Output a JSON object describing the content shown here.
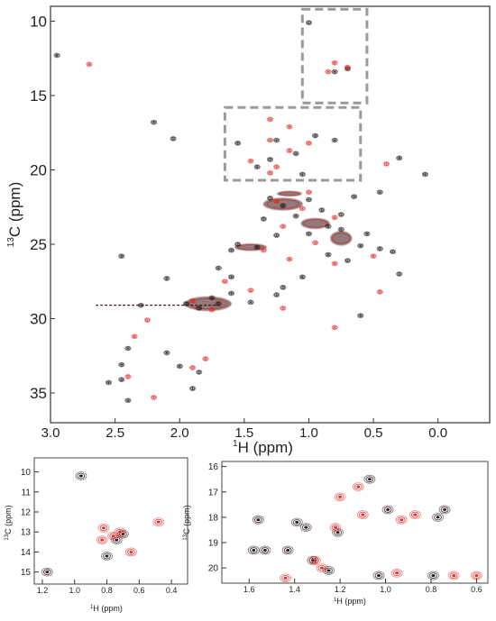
{
  "chart_data": [
    {
      "type": "scatter",
      "title": "",
      "xlabel_sup": "1",
      "xlabel": "H (ppm)",
      "ylabel_sup": "13",
      "ylabel": "C (ppm)",
      "xlim": [
        3.0,
        -0.4
      ],
      "ylim": [
        9,
        37
      ],
      "x_ticks": [
        "3.0",
        "2.5",
        "2.0",
        "1.5",
        "1.0",
        "0.5",
        "0.0"
      ],
      "y_ticks": [
        "10",
        "15",
        "20",
        "25",
        "30",
        "35"
      ],
      "x_tick_values": [
        3.0,
        2.5,
        2.0,
        1.5,
        1.0,
        0.5,
        0.0
      ],
      "y_tick_values": [
        10,
        15,
        20,
        25,
        30,
        35
      ],
      "highlight_boxes": [
        {
          "x": [
            0.55,
            1.05
          ],
          "y": [
            9.2,
            15.5
          ]
        },
        {
          "x": [
            0.6,
            1.65
          ],
          "y": [
            15.8,
            20.7
          ]
        }
      ],
      "series": [
        {
          "color": "#1a0a0a",
          "points": [
            [
              1.0,
              10.1
            ],
            [
              0.7,
              13.2
            ],
            [
              0.8,
              13.4
            ],
            [
              2.95,
              12.3
            ],
            [
              2.2,
              16.8
            ],
            [
              2.05,
              17.9
            ],
            [
              1.55,
              18.2
            ],
            [
              1.25,
              18.0
            ],
            [
              0.95,
              17.7
            ],
            [
              0.8,
              18.0
            ],
            [
              1.4,
              19.8
            ],
            [
              1.3,
              19.3
            ],
            [
              1.1,
              18.9
            ],
            [
              1.05,
              20.3
            ],
            [
              0.3,
              19.2
            ],
            [
              0.1,
              20.3
            ],
            [
              1.3,
              21.9
            ],
            [
              1.2,
              22.4
            ],
            [
              1.0,
              22.0
            ],
            [
              1.1,
              23.1
            ],
            [
              0.9,
              22.7
            ],
            [
              0.75,
              23.0
            ],
            [
              1.35,
              23.3
            ],
            [
              0.65,
              21.8
            ],
            [
              0.45,
              21.5
            ],
            [
              1.25,
              24.4
            ],
            [
              1.0,
              24.3
            ],
            [
              0.85,
              23.8
            ],
            [
              0.75,
              24.0
            ],
            [
              0.55,
              24.3
            ],
            [
              1.55,
              25.0
            ],
            [
              1.4,
              25.2
            ],
            [
              1.6,
              25.4
            ],
            [
              0.6,
              25.1
            ],
            [
              0.45,
              25.3
            ],
            [
              0.85,
              25.7
            ],
            [
              0.7,
              26.1
            ],
            [
              0.35,
              25.5
            ],
            [
              2.45,
              25.8
            ],
            [
              1.7,
              26.6
            ],
            [
              2.1,
              27.3
            ],
            [
              1.6,
              27.2
            ],
            [
              1.05,
              27.2
            ],
            [
              0.3,
              27.0
            ],
            [
              1.2,
              27.9
            ],
            [
              1.7,
              29.0
            ],
            [
              1.85,
              29.3
            ],
            [
              1.95,
              29.0
            ],
            [
              1.75,
              28.6
            ],
            [
              2.3,
              29.1
            ],
            [
              1.6,
              28.3
            ],
            [
              1.45,
              28.9
            ],
            [
              1.25,
              28.4
            ],
            [
              0.6,
              29.8
            ],
            [
              2.4,
              32.0
            ],
            [
              2.1,
              32.3
            ],
            [
              2.0,
              33.2
            ],
            [
              2.45,
              33.1
            ],
            [
              1.85,
              33.6
            ],
            [
              2.45,
              34.1
            ],
            [
              2.55,
              34.3
            ],
            [
              1.9,
              34.7
            ],
            [
              2.4,
              35.5
            ]
          ]
        },
        {
          "color": "#e0201e",
          "points": [
            [
              0.8,
              12.8
            ],
            [
              0.7,
              13.1
            ],
            [
              0.85,
              13.4
            ],
            [
              2.7,
              12.9
            ],
            [
              1.3,
              16.6
            ],
            [
              1.15,
              17.1
            ],
            [
              1.3,
              18.0
            ],
            [
              1.0,
              18.2
            ],
            [
              1.45,
              19.4
            ],
            [
              1.3,
              20.2
            ],
            [
              1.25,
              19.8
            ],
            [
              1.15,
              18.7
            ],
            [
              0.4,
              19.6
            ],
            [
              1.0,
              21.5
            ],
            [
              1.25,
              22.1
            ],
            [
              1.05,
              22.6
            ],
            [
              0.8,
              23.2
            ],
            [
              1.2,
              23.8
            ],
            [
              0.95,
              24.9
            ],
            [
              1.35,
              25.4
            ],
            [
              0.5,
              25.8
            ],
            [
              1.15,
              26.0
            ],
            [
              0.8,
              26.3
            ],
            [
              1.65,
              27.5
            ],
            [
              1.45,
              28.1
            ],
            [
              1.2,
              29.3
            ],
            [
              1.9,
              28.8
            ],
            [
              1.75,
              29.4
            ],
            [
              2.25,
              30.1
            ],
            [
              2.35,
              31.2
            ],
            [
              1.9,
              33.3
            ],
            [
              1.8,
              32.7
            ],
            [
              0.8,
              30.6
            ],
            [
              0.45,
              28.2
            ],
            [
              2.4,
              33.9
            ],
            [
              2.2,
              35.3
            ]
          ]
        }
      ]
    },
    {
      "type": "scatter",
      "title": "",
      "xlabel_sup": "1",
      "xlabel": "H (ppm)",
      "ylabel_sup": "13",
      "ylabel": "C (ppm)",
      "xlim": [
        1.25,
        0.3
      ],
      "ylim": [
        9.3,
        15.6
      ],
      "x_ticks": [
        "1.2",
        "1.0",
        "0.8",
        "0.6",
        "0.4"
      ],
      "y_ticks": [
        "10",
        "11",
        "12",
        "13",
        "14",
        "15"
      ],
      "x_tick_values": [
        1.2,
        1.0,
        0.8,
        0.6,
        0.4
      ],
      "y_tick_values": [
        10,
        11,
        12,
        13,
        14,
        15
      ],
      "series": [
        {
          "color": "#1a0a0a",
          "points": [
            [
              0.96,
              10.2
            ],
            [
              0.7,
              13.1
            ],
            [
              0.74,
              13.4
            ],
            [
              0.8,
              14.2
            ],
            [
              1.17,
              15.0
            ]
          ]
        },
        {
          "color": "#e0201e",
          "points": [
            [
              0.82,
              12.8
            ],
            [
              0.76,
              13.2
            ],
            [
              0.83,
              13.4
            ],
            [
              0.72,
              13.0
            ],
            [
              0.48,
              12.5
            ],
            [
              0.65,
              14.0
            ]
          ]
        }
      ]
    },
    {
      "type": "scatter",
      "title": "",
      "xlabel_sup": "1",
      "xlabel": "H (ppm)",
      "ylabel_sup": "13",
      "ylabel": "C (ppm)",
      "xlim": [
        1.72,
        0.55
      ],
      "ylim": [
        15.8,
        20.6
      ],
      "x_ticks": [
        "1.6",
        "1.4",
        "1.2",
        "1.0",
        "0.8",
        "0.6"
      ],
      "y_ticks": [
        "16",
        "17",
        "18",
        "19",
        "20"
      ],
      "x_tick_values": [
        1.6,
        1.4,
        1.2,
        1.0,
        0.8,
        0.6
      ],
      "y_tick_values": [
        16,
        17,
        18,
        19,
        20
      ],
      "series": [
        {
          "color": "#1a0a0a",
          "points": [
            [
              1.56,
              18.1
            ],
            [
              1.39,
              18.2
            ],
            [
              1.35,
              18.4
            ],
            [
              1.21,
              18.6
            ],
            [
              0.99,
              17.7
            ],
            [
              0.77,
              18.0
            ],
            [
              0.74,
              17.7
            ],
            [
              1.07,
              16.5
            ],
            [
              1.43,
              19.3
            ],
            [
              1.58,
              19.3
            ],
            [
              1.53,
              19.3
            ],
            [
              1.32,
              19.7
            ],
            [
              1.25,
              20.1
            ],
            [
              1.03,
              20.3
            ],
            [
              0.79,
              20.3
            ]
          ]
        },
        {
          "color": "#e0201e",
          "points": [
            [
              1.12,
              16.8
            ],
            [
              1.2,
              17.2
            ],
            [
              1.22,
              18.4
            ],
            [
              1.1,
              17.9
            ],
            [
              0.93,
              18.1
            ],
            [
              0.87,
              17.9
            ],
            [
              1.28,
              20.0
            ],
            [
              1.31,
              19.7
            ],
            [
              0.95,
              20.2
            ],
            [
              0.6,
              20.3
            ],
            [
              0.7,
              20.3
            ],
            [
              1.44,
              20.4
            ]
          ]
        }
      ]
    }
  ]
}
